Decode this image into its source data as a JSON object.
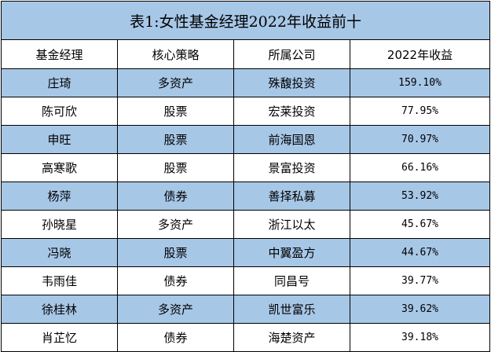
{
  "table": {
    "title": "表1:女性基金经理2022年收益前十",
    "headers": [
      "基金经理",
      "核心策略",
      "所属公司",
      "2022年收益"
    ],
    "rows": [
      {
        "manager": "庄琦",
        "strategy": "多资产",
        "company": "殊馥投资",
        "return": "159.10%"
      },
      {
        "manager": "陈可欣",
        "strategy": "股票",
        "company": "宏莱投资",
        "return": "77.95%"
      },
      {
        "manager": "申旺",
        "strategy": "股票",
        "company": "前海国恩",
        "return": "70.97%"
      },
      {
        "manager": "高寒歌",
        "strategy": "股票",
        "company": "景富投资",
        "return": "66.16%"
      },
      {
        "manager": "杨萍",
        "strategy": "债券",
        "company": "善择私募",
        "return": "53.92%"
      },
      {
        "manager": "孙晓星",
        "strategy": "多资产",
        "company": "浙江以太",
        "return": "45.67%"
      },
      {
        "manager": "冯晓",
        "strategy": "股票",
        "company": "中翼盈方",
        "return": "44.67%"
      },
      {
        "manager": "韦雨佳",
        "strategy": "债券",
        "company": "同昌号",
        "return": "39.77%"
      },
      {
        "manager": "徐桂林",
        "strategy": "多资产",
        "company": "凯世富乐",
        "return": "39.62%"
      },
      {
        "manager": "肖芷忆",
        "strategy": "债券",
        "company": "海楚资产",
        "return": "39.18%"
      }
    ],
    "colors": {
      "shaded_row": "#a7c7e7",
      "plain_row": "#ffffff",
      "border": "#000000"
    }
  }
}
